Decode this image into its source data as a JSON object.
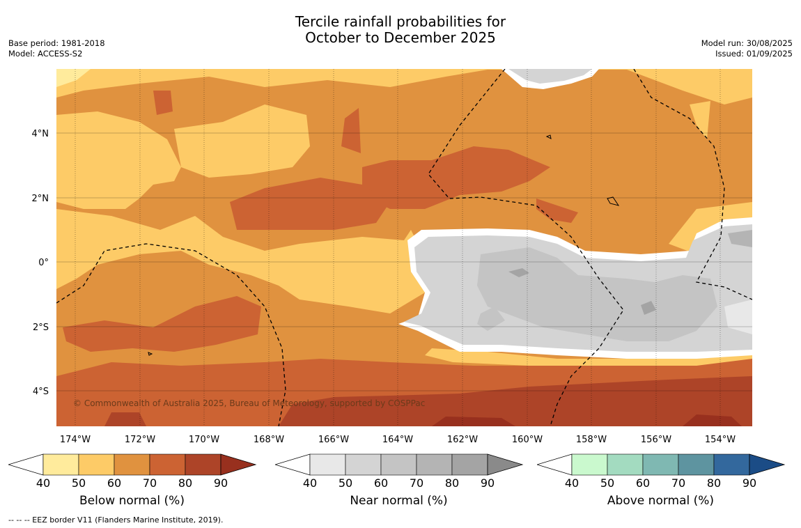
{
  "title": {
    "line1": "Tercile rainfall probabilities for",
    "line2": "October to December 2025"
  },
  "meta_left": {
    "base_period": "Base period: 1981-2018",
    "model": "Model: ACCESS-S2"
  },
  "meta_right": {
    "model_run": "Model run: 30/08/2025",
    "issued": "Issued: 01/09/2025"
  },
  "map": {
    "lon_labels": [
      "174°W",
      "172°W",
      "170°W",
      "168°W",
      "166°W",
      "164°W",
      "162°W",
      "160°W",
      "158°W",
      "156°W",
      "154°W"
    ],
    "lat_labels": [
      "4°N",
      "2°N",
      "0°",
      "2°S",
      "4°S"
    ],
    "copyright": "© Commonwealth of Australia 2025, Bureau of Meteorology, supported by COSPPac"
  },
  "colorbars": [
    {
      "title": "Below normal (%)",
      "ticks": [
        "40",
        "50",
        "60",
        "70",
        "80",
        "90"
      ],
      "colors": [
        "#ffffff",
        "#ffeb9c",
        "#fdcb67",
        "#e0923f",
        "#cc6333",
        "#ad4428",
        "#98301e"
      ]
    },
    {
      "title": "Near normal (%)",
      "ticks": [
        "40",
        "50",
        "60",
        "70",
        "80",
        "90"
      ],
      "colors": [
        "#ffffff",
        "#e8e8e8",
        "#d4d4d4",
        "#c4c4c4",
        "#b4b4b4",
        "#a4a4a4",
        "#8a8a8a"
      ]
    },
    {
      "title": "Above normal (%)",
      "ticks": [
        "40",
        "50",
        "60",
        "70",
        "80",
        "90"
      ],
      "colors": [
        "#ffffff",
        "#caf9ce",
        "#a3dbc0",
        "#7fb8b2",
        "#5e94a0",
        "#33689d",
        "#1b4c86"
      ]
    }
  ],
  "footer": "--  --  -- EEZ border V11 (Flanders Marine Institute, 2019)."
}
